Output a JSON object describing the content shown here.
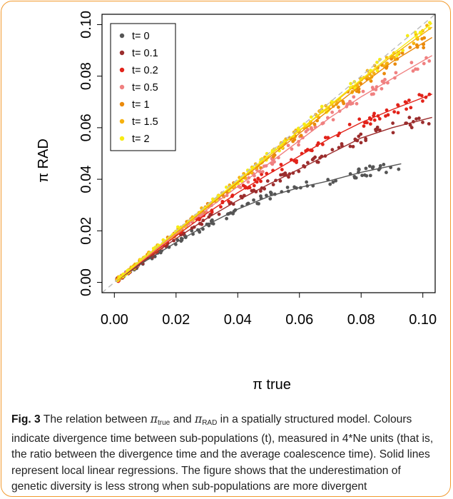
{
  "figure": {
    "label": "Fig. 3",
    "caption_intro": "The relation between ",
    "sym_true": "π",
    "sub_true": "true",
    "caption_and": " and ",
    "sym_rad": "π",
    "sub_rad": "RAD",
    "caption_rest": " in a spatially structured model. Colours indicate divergence time between sub-populations (t), measured in 4*Ne units (that is, the ratio between the divergence time and the average coalescence time). Solid lines represent local linear regressions. The figure shows that the underestimation of genetic diversity is less strong when sub-populations are more divergent"
  },
  "colors": {
    "frame": "#f29a2e",
    "reference_line": "#bbbbbb"
  },
  "chart_data": {
    "type": "scatter",
    "xlabel": "π true",
    "ylabel": "π RAD",
    "xlim": [
      -0.004,
      0.104
    ],
    "ylim": [
      -0.004,
      0.104
    ],
    "x_ticks": [
      "0.00",
      "0.02",
      "0.04",
      "0.06",
      "0.08",
      "0.10"
    ],
    "y_ticks": [
      "0.00",
      "0.02",
      "0.04",
      "0.06",
      "0.08",
      "0.10"
    ],
    "grid": false,
    "legend_position": "top-left",
    "reference_line": "y = x (dashed)",
    "series": [
      {
        "name": "t= 0",
        "color": "#555555",
        "points": [
          [
            0.001,
            0.0009
          ],
          [
            0.005,
            0.0042
          ],
          [
            0.01,
            0.0082
          ],
          [
            0.02,
            0.0155
          ],
          [
            0.03,
            0.0223
          ],
          [
            0.04,
            0.0284
          ],
          [
            0.05,
            0.0333
          ],
          [
            0.06,
            0.0368
          ],
          [
            0.07,
            0.0395
          ],
          [
            0.08,
            0.0427
          ],
          [
            0.093,
            0.046
          ]
        ]
      },
      {
        "name": "t= 0.1",
        "color": "#9b2d2d",
        "points": [
          [
            0.001,
            0.0009
          ],
          [
            0.005,
            0.0044
          ],
          [
            0.01,
            0.0087
          ],
          [
            0.02,
            0.017
          ],
          [
            0.03,
            0.0248
          ],
          [
            0.04,
            0.0318
          ],
          [
            0.05,
            0.038
          ],
          [
            0.06,
            0.044
          ],
          [
            0.07,
            0.05
          ],
          [
            0.08,
            0.056
          ],
          [
            0.09,
            0.06
          ],
          [
            0.103,
            0.064
          ]
        ]
      },
      {
        "name": "t= 0.2",
        "color": "#e2231a",
        "points": [
          [
            0.001,
            0.0009
          ],
          [
            0.005,
            0.0046
          ],
          [
            0.01,
            0.0092
          ],
          [
            0.02,
            0.018
          ],
          [
            0.03,
            0.0268
          ],
          [
            0.04,
            0.0348
          ],
          [
            0.05,
            0.042
          ],
          [
            0.06,
            0.049
          ],
          [
            0.07,
            0.056
          ],
          [
            0.08,
            0.062
          ],
          [
            0.09,
            0.067
          ],
          [
            0.103,
            0.073
          ]
        ]
      },
      {
        "name": "t= 0.5",
        "color": "#f08080",
        "points": [
          [
            0.001,
            0.001
          ],
          [
            0.005,
            0.0047
          ],
          [
            0.01,
            0.0094
          ],
          [
            0.02,
            0.0188
          ],
          [
            0.03,
            0.0282
          ],
          [
            0.04,
            0.0372
          ],
          [
            0.05,
            0.046
          ],
          [
            0.06,
            0.055
          ],
          [
            0.07,
            0.064
          ],
          [
            0.08,
            0.072
          ],
          [
            0.09,
            0.079
          ],
          [
            0.103,
            0.088
          ]
        ]
      },
      {
        "name": "t= 1",
        "color": "#ea8a0b",
        "points": [
          [
            0.001,
            0.001
          ],
          [
            0.005,
            0.0048
          ],
          [
            0.01,
            0.0097
          ],
          [
            0.02,
            0.0194
          ],
          [
            0.03,
            0.0291
          ],
          [
            0.04,
            0.0387
          ],
          [
            0.05,
            0.0483
          ],
          [
            0.06,
            0.0578
          ],
          [
            0.07,
            0.0672
          ],
          [
            0.08,
            0.0765
          ],
          [
            0.09,
            0.0855
          ],
          [
            0.103,
            0.095
          ]
        ]
      },
      {
        "name": "t= 1.5",
        "color": "#f6b10e",
        "points": [
          [
            0.001,
            0.001
          ],
          [
            0.005,
            0.0049
          ],
          [
            0.01,
            0.0098
          ],
          [
            0.02,
            0.0196
          ],
          [
            0.03,
            0.0294
          ],
          [
            0.04,
            0.0392
          ],
          [
            0.05,
            0.049
          ],
          [
            0.06,
            0.0588
          ],
          [
            0.07,
            0.0685
          ],
          [
            0.08,
            0.0782
          ],
          [
            0.09,
            0.0878
          ],
          [
            0.103,
            0.099
          ]
        ]
      },
      {
        "name": "t= 2",
        "color": "#f7ec14",
        "points": [
          [
            0.001,
            0.001
          ],
          [
            0.005,
            0.0049
          ],
          [
            0.01,
            0.0098
          ],
          [
            0.02,
            0.0197
          ],
          [
            0.03,
            0.0295
          ],
          [
            0.04,
            0.0394
          ],
          [
            0.05,
            0.0492
          ],
          [
            0.06,
            0.059
          ],
          [
            0.07,
            0.0689
          ],
          [
            0.08,
            0.0787
          ],
          [
            0.09,
            0.0885
          ],
          [
            0.103,
            0.1005
          ]
        ]
      }
    ]
  }
}
